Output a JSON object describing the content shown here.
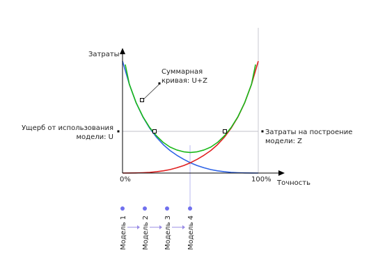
{
  "chart_data": {
    "type": "line",
    "title": "",
    "xlabel": "Точность",
    "ylabel": "Затраты",
    "xlim": [
      0,
      100
    ],
    "ylim": [
      0,
      100
    ],
    "x_tick_labels": [
      "0%",
      "100%"
    ],
    "grid": false,
    "series": [
      {
        "name": "Ущерб от использования модели: U",
        "color": "#2e63e6",
        "x": [
          0,
          5,
          10,
          15,
          20,
          25,
          30,
          35,
          40,
          45,
          50,
          55,
          60,
          65,
          70,
          75,
          80,
          85,
          90,
          95,
          100
        ],
        "y": [
          100,
          79.3,
          62.8,
          50.1,
          40.1,
          32,
          25.4,
          20.1,
          15.9,
          12.3,
          9.2,
          6.7,
          4.7,
          3.1,
          2,
          1.2,
          0.6,
          0.3,
          0.1,
          0.05,
          0
        ]
      },
      {
        "name": "Затраты на построение модели: Z",
        "color": "#e02020",
        "x": [
          0,
          5,
          10,
          15,
          20,
          25,
          30,
          35,
          40,
          45,
          50,
          55,
          60,
          65,
          70,
          75,
          80,
          85,
          90,
          95,
          100
        ],
        "y": [
          0,
          0.05,
          0.1,
          0.3,
          0.6,
          1.2,
          2,
          3.1,
          4.7,
          6.7,
          9.2,
          12.3,
          15.9,
          20.1,
          25.4,
          32,
          40.1,
          50.1,
          62.8,
          79.3,
          100
        ]
      },
      {
        "name": "Суммарная кривая: U+Z",
        "color": "#18b818",
        "x": [
          2,
          5,
          10,
          15,
          20,
          25,
          30,
          35,
          40,
          45,
          50,
          55,
          60,
          65,
          70,
          75,
          80,
          85,
          90,
          95,
          98
        ],
        "y": [
          97,
          79.4,
          62.9,
          50.4,
          40.7,
          33.2,
          27.4,
          23.2,
          20.6,
          19,
          18.4,
          19,
          20.6,
          23.2,
          27.4,
          33.2,
          40.7,
          50.4,
          62.9,
          79.4,
          97
        ]
      }
    ],
    "annotations": [
      {
        "text": "Суммарная кривая: U+Z",
        "lines": [
          "Суммарная",
          "кривая: U+Z"
        ]
      },
      {
        "text": "Ущерб от использования модели: U",
        "lines": [
          "Ущерб от использования",
          "модели: U"
        ]
      },
      {
        "text": "Затраты на построение модели: Z",
        "lines": [
          "Затраты на построение",
          "модели: Z"
        ]
      }
    ],
    "models": [
      "Модель 1",
      "Модель 2",
      "Модель 3",
      "Модель 4"
    ],
    "colors": {
      "axis": "#000000",
      "guide": "#c0c0c8",
      "model_dot": "#7070ee",
      "model_arrow": "#9a8ce6"
    }
  }
}
